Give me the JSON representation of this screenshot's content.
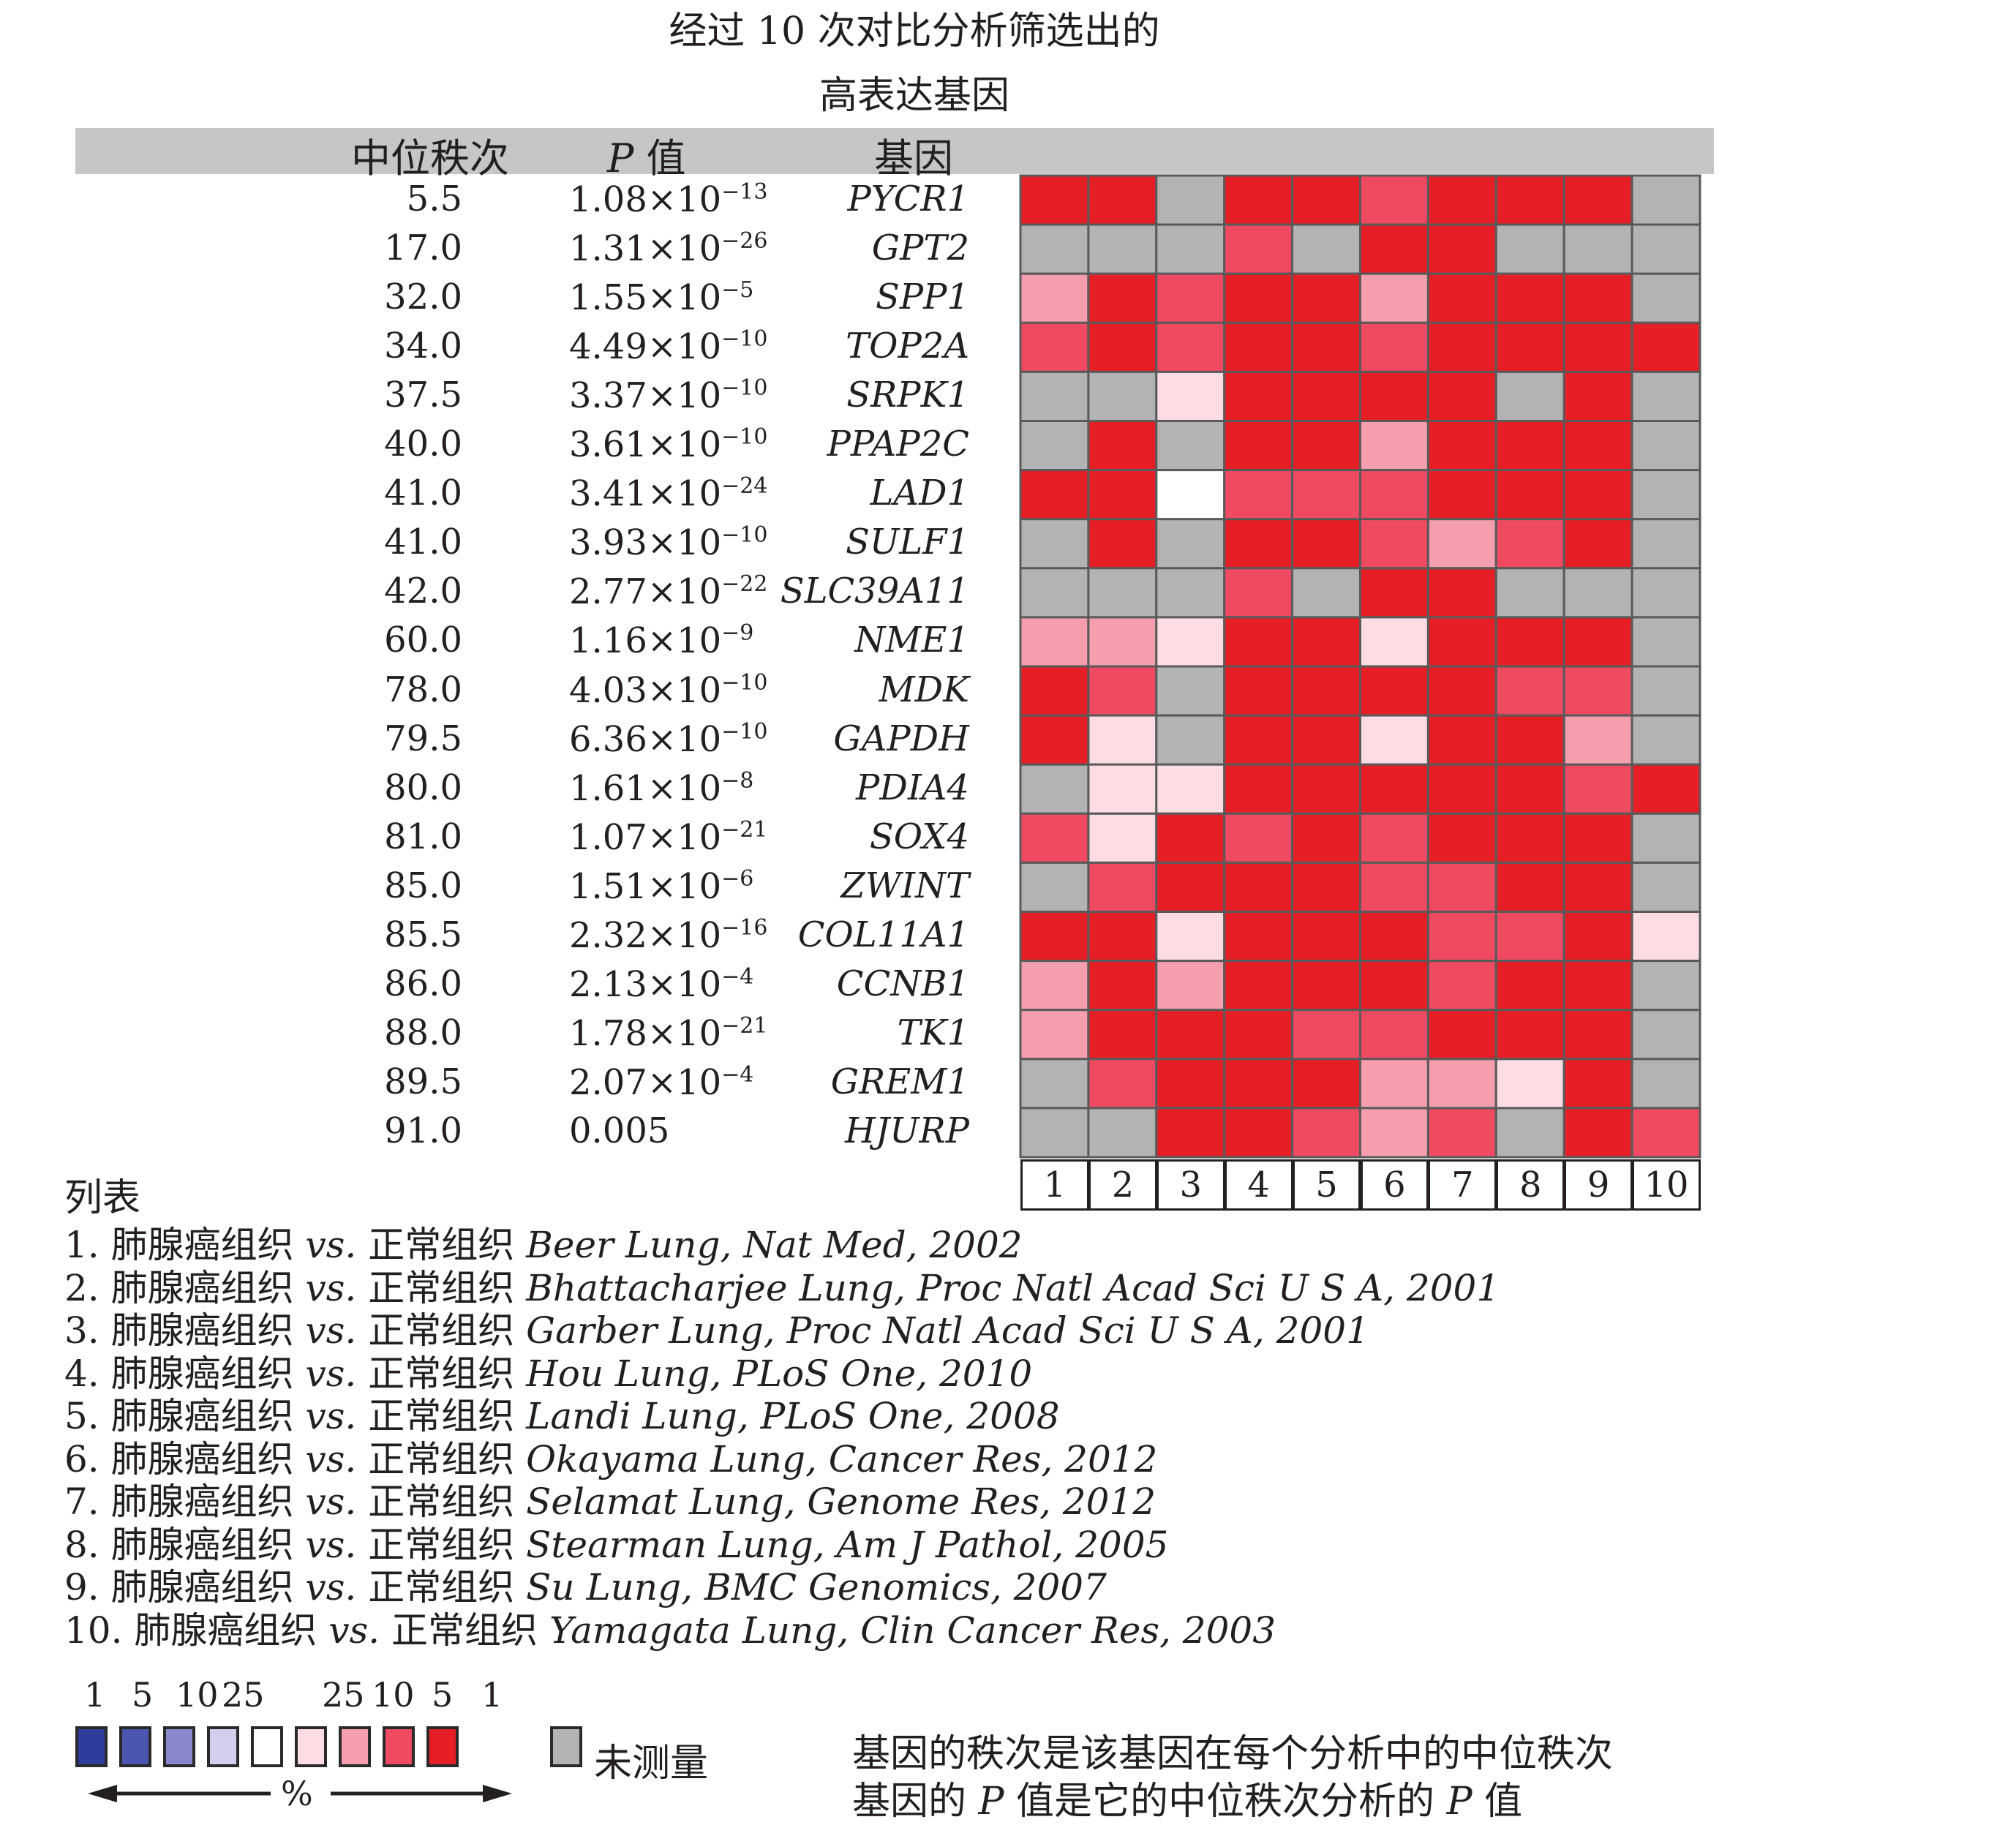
{
  "title_line1": "经过 10 次对比分析筛选出的",
  "title_line2": "高表达基因",
  "headers": {
    "rank": "中位秩次",
    "p_italic": "P",
    "p_suffix": " 值",
    "gene": "基因"
  },
  "rows": [
    {
      "rank": "5.5",
      "m": "1.08",
      "e": "−13",
      "gene": "PYCR1"
    },
    {
      "rank": "17.0",
      "m": "1.31",
      "e": "−26",
      "gene": "GPT2"
    },
    {
      "rank": "32.0",
      "m": "1.55",
      "e": "−5",
      "gene": "SPP1"
    },
    {
      "rank": "34.0",
      "m": "4.49",
      "e": "−10",
      "gene": "TOP2A"
    },
    {
      "rank": "37.5",
      "m": "3.37",
      "e": "−10",
      "gene": "SRPK1"
    },
    {
      "rank": "40.0",
      "m": "3.61",
      "e": "−10",
      "gene": "PPAP2C"
    },
    {
      "rank": "41.0",
      "m": "3.41",
      "e": "−24",
      "gene": "LAD1"
    },
    {
      "rank": "41.0",
      "m": "3.93",
      "e": "−10",
      "gene": "SULF1"
    },
    {
      "rank": "42.0",
      "m": "2.77",
      "e": "−22",
      "gene": "SLC39A11"
    },
    {
      "rank": "60.0",
      "m": "1.16",
      "e": "−9",
      "gene": "NME1"
    },
    {
      "rank": "78.0",
      "m": "4.03",
      "e": "−10",
      "gene": "MDK"
    },
    {
      "rank": "79.5",
      "m": "6.36",
      "e": "−10",
      "gene": "GAPDH"
    },
    {
      "rank": "80.0",
      "m": "1.61",
      "e": "−8",
      "gene": "PDIA4"
    },
    {
      "rank": "81.0",
      "m": "1.07",
      "e": "−21",
      "gene": "SOX4"
    },
    {
      "rank": "85.0",
      "m": "1.51",
      "e": "−6",
      "gene": "ZWINT"
    },
    {
      "rank": "85.5",
      "m": "2.32",
      "e": "−16",
      "gene": "COL11A1"
    },
    {
      "rank": "86.0",
      "m": "2.13",
      "e": "−4",
      "gene": "CCNB1"
    },
    {
      "rank": "88.0",
      "m": "1.78",
      "e": "−21",
      "gene": "TK1"
    },
    {
      "rank": "89.5",
      "m": "2.07",
      "e": "−4",
      "gene": "GREM1"
    },
    {
      "rank": "91.0",
      "p": "0.005",
      "gene": "HJURP"
    }
  ],
  "chart_data": {
    "type": "heatmap",
    "columns": [
      "1",
      "2",
      "3",
      "4",
      "5",
      "6",
      "7",
      "8",
      "9",
      "10"
    ],
    "level_colors": {
      "1": "#e61e25",
      "5": "#ef4a62",
      "10": "#f59eae",
      "25": "#fddde3",
      "W": "#ffffff",
      "N": "#b3b3b3"
    },
    "grid": [
      [
        "1",
        "1",
        "N",
        "1",
        "1",
        "5",
        "1",
        "1",
        "1",
        "N"
      ],
      [
        "N",
        "N",
        "N",
        "5",
        "N",
        "1",
        "1",
        "N",
        "N",
        "N"
      ],
      [
        "10",
        "1",
        "5",
        "1",
        "1",
        "10",
        "1",
        "1",
        "1",
        "N"
      ],
      [
        "5",
        "1",
        "5",
        "1",
        "1",
        "5",
        "1",
        "1",
        "1",
        "1"
      ],
      [
        "N",
        "N",
        "25",
        "1",
        "1",
        "1",
        "1",
        "N",
        "1",
        "N"
      ],
      [
        "N",
        "1",
        "N",
        "1",
        "1",
        "10",
        "1",
        "1",
        "1",
        "N"
      ],
      [
        "1",
        "1",
        "W",
        "5",
        "5",
        "5",
        "1",
        "1",
        "1",
        "N"
      ],
      [
        "N",
        "1",
        "N",
        "1",
        "1",
        "5",
        "10",
        "5",
        "1",
        "N"
      ],
      [
        "N",
        "N",
        "N",
        "5",
        "N",
        "1",
        "1",
        "N",
        "N",
        "N"
      ],
      [
        "10",
        "10",
        "25",
        "1",
        "1",
        "25",
        "1",
        "1",
        "1",
        "N"
      ],
      [
        "1",
        "5",
        "N",
        "1",
        "1",
        "1",
        "1",
        "5",
        "5",
        "N"
      ],
      [
        "1",
        "25",
        "N",
        "1",
        "1",
        "25",
        "1",
        "1",
        "10",
        "N"
      ],
      [
        "N",
        "25",
        "25",
        "1",
        "1",
        "1",
        "1",
        "1",
        "5",
        "1"
      ],
      [
        "5",
        "25",
        "1",
        "5",
        "1",
        "5",
        "1",
        "1",
        "1",
        "N"
      ],
      [
        "N",
        "5",
        "1",
        "1",
        "1",
        "5",
        "5",
        "1",
        "1",
        "N"
      ],
      [
        "1",
        "1",
        "25",
        "1",
        "1",
        "1",
        "5",
        "5",
        "1",
        "25"
      ],
      [
        "10",
        "1",
        "10",
        "1",
        "1",
        "1",
        "5",
        "1",
        "1",
        "N"
      ],
      [
        "10",
        "1",
        "1",
        "1",
        "5",
        "5",
        "1",
        "1",
        "1",
        "N"
      ],
      [
        "N",
        "5",
        "1",
        "1",
        "1",
        "10",
        "10",
        "25",
        "1",
        "N"
      ],
      [
        "N",
        "N",
        "1",
        "1",
        "5",
        "10",
        "5",
        "N",
        "1",
        "5"
      ]
    ]
  },
  "list_title": "列表",
  "list": [
    {
      "n": "1. ",
      "cn": "肺腺癌组织 ",
      "vs": "vs.",
      "cn2": " 正常组织 ",
      "ref": "Beer Lung, Nat Med, 2002"
    },
    {
      "n": "2. ",
      "cn": "肺腺癌组织 ",
      "vs": "vs.",
      "cn2": " 正常组织 ",
      "ref": "Bhattacharjee Lung, Proc Natl Acad Sci U S A, 2001"
    },
    {
      "n": "3. ",
      "cn": "肺腺癌组织 ",
      "vs": "vs.",
      "cn2": " 正常组织 ",
      "ref": "Garber Lung, Proc Natl Acad Sci U S A, 2001"
    },
    {
      "n": "4. ",
      "cn": "肺腺癌组织 ",
      "vs": "vs.",
      "cn2": " 正常组织 ",
      "ref": "Hou Lung, PLoS One, 2010"
    },
    {
      "n": "5. ",
      "cn": "肺腺癌组织 ",
      "vs": "vs.",
      "cn2": " 正常组织 ",
      "ref": "Landi Lung, PLoS One, 2008"
    },
    {
      "n": "6. ",
      "cn": "肺腺癌组织 ",
      "vs": "vs.",
      "cn2": " 正常组织 ",
      "ref": "Okayama Lung, Cancer Res, 2012"
    },
    {
      "n": "7. ",
      "cn": "肺腺癌组织 ",
      "vs": "vs.",
      "cn2": " 正常组织 ",
      "ref": "Selamat Lung, Genome Res, 2012"
    },
    {
      "n": "8. ",
      "cn": "肺腺癌组织 ",
      "vs": "vs.",
      "cn2": " 正常组织 ",
      "ref": "Stearman Lung, Am J Pathol, 2005"
    },
    {
      "n": "9. ",
      "cn": "肺腺癌组织 ",
      "vs": "vs.",
      "cn2": " 正常组织 ",
      "ref": "Su Lung, BMC Genomics, 2007"
    },
    {
      "n": "10. ",
      "cn": "肺腺癌组织 ",
      "vs": "vs.",
      "cn2": " 正常组织 ",
      "ref": "Yamagata Lung, Clin Cancer Res, 2003"
    }
  ],
  "legend": {
    "numbers": [
      "1",
      "5",
      "10",
      "25",
      "25",
      "10",
      "5",
      "1"
    ],
    "colors": [
      "#2e3d9c",
      "#4c55b0",
      "#8a88cc",
      "#d2cfee",
      "#ffffff",
      "#fddde3",
      "#f59eae",
      "#ef4a62",
      "#e61e25"
    ],
    "unmeasured_color": "#b3b3b3",
    "unmeasured_label": "未测量",
    "percent": "%"
  },
  "notes": {
    "line1": "基因的秩次是该基因在每个分析中的中位秩次",
    "line2_a": "基因的 ",
    "line2_p": "P",
    "line2_b": " 值是它的中位秩次分析的 ",
    "line2_p2": "P",
    "line2_c": " 值"
  }
}
